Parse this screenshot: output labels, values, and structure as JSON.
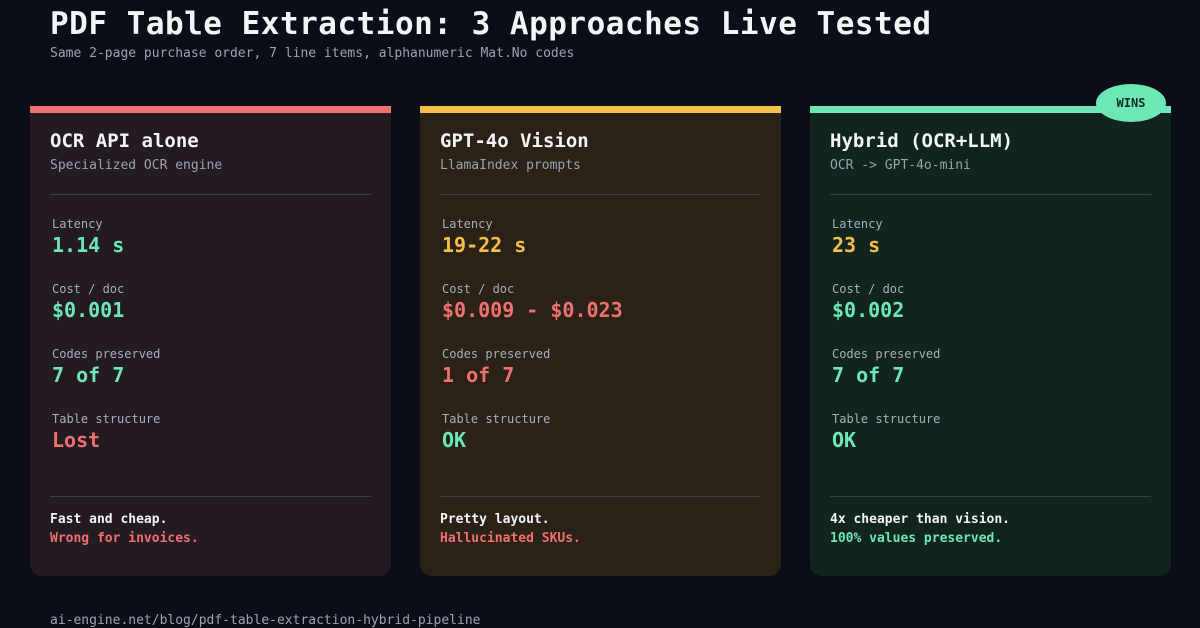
{
  "header": {
    "title": "PDF Table Extraction: 3 Approaches Live Tested",
    "subtitle": "Same 2-page purchase order, 7 line items, alphanumeric Mat.No codes"
  },
  "badge": "WINS",
  "colors": {
    "good": "#6ee7b7",
    "warn": "#f5c04a",
    "bad": "#f07070"
  },
  "labels": {
    "latency": "Latency",
    "cost": "Cost / doc",
    "codes": "Codes preserved",
    "structure": "Table structure"
  },
  "cards": [
    {
      "title": "OCR API alone",
      "subtitle": "Specialized OCR engine",
      "latency": "1.14 s",
      "cost": "$0.001",
      "codes": "7 of 7",
      "structure": "Lost",
      "verdict": "Fast and cheap.",
      "note": "Wrong for invoices."
    },
    {
      "title": "GPT-4o Vision",
      "subtitle": "LlamaIndex prompts",
      "latency": "19-22 s",
      "cost": "$0.009 - $0.023",
      "codes": "1 of 7",
      "structure": "OK",
      "verdict": "Pretty layout.",
      "note": "Hallucinated SKUs."
    },
    {
      "title": "Hybrid (OCR+LLM)",
      "subtitle": "OCR -> GPT-4o-mini",
      "latency": "23 s",
      "cost": "$0.002",
      "codes": "7 of 7",
      "structure": "OK",
      "verdict": "4x cheaper than vision.",
      "note": "100% values preserved."
    }
  ],
  "footer": {
    "url": "ai-engine.net/blog/pdf-table-extraction-hybrid-pipeline"
  }
}
